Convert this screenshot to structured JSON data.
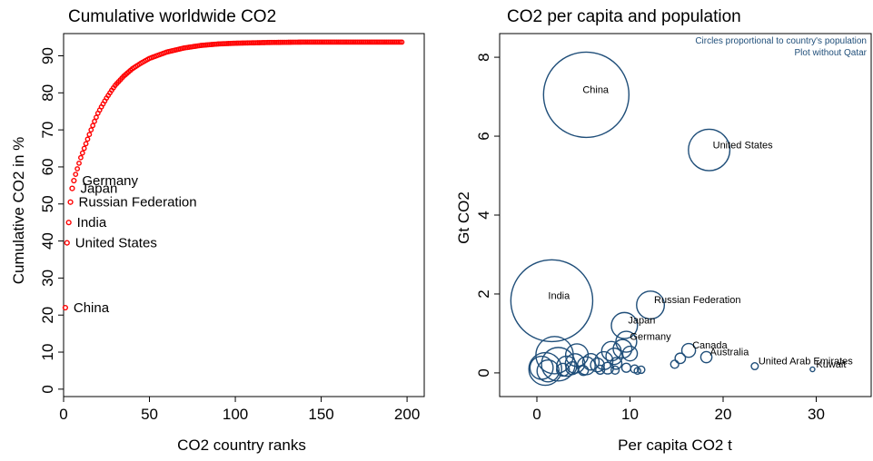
{
  "colors": {
    "left_markers": "#ff0000",
    "bubbles": "#1f4e79",
    "note": "#1f4e79",
    "axis": "#000000"
  },
  "chart_data": [
    {
      "type": "scatter",
      "title": "Cumulative worldwide CO2",
      "xlabel": "CO2 country ranks",
      "ylabel": "Cumulative CO2 in %",
      "xlim": [
        0,
        210
      ],
      "ylim": [
        -2,
        96
      ],
      "xticks": [
        0,
        50,
        100,
        150,
        200
      ],
      "xtick_labels": [
        "0",
        "50",
        "100",
        "150",
        "200"
      ],
      "yticks": [
        0,
        10,
        20,
        30,
        40,
        50,
        60,
        70,
        80,
        90
      ],
      "ytick_labels": [
        "0",
        "10",
        "20",
        "30",
        "40",
        "50",
        "60",
        "70",
        "80",
        "90"
      ],
      "grid": false,
      "marker_color": "#ff0000",
      "curve": {
        "x": [
          1,
          2,
          3,
          4,
          5,
          6,
          7,
          8,
          9,
          10,
          12,
          14,
          16,
          18,
          20,
          22,
          25,
          28,
          30,
          35,
          40,
          45,
          50,
          60,
          70,
          80,
          90,
          100,
          120,
          140,
          160,
          180,
          197
        ],
        "y": [
          22,
          39.5,
          45,
          50.5,
          54.2,
          56.3,
          58,
          59.5,
          61,
          62.5,
          65,
          67.5,
          70,
          72.3,
          74.5,
          76.2,
          78.6,
          80.7,
          82,
          84.5,
          86.5,
          88,
          89.3,
          91,
          92.1,
          92.8,
          93.2,
          93.4,
          93.6,
          93.7,
          93.7,
          93.7,
          93.7
        ]
      },
      "labeled_points": [
        {
          "name": "China",
          "x": 1,
          "y": 22
        },
        {
          "name": "United States",
          "x": 2,
          "y": 39.5
        },
        {
          "name": "India",
          "x": 3,
          "y": 45
        },
        {
          "name": "Russian Federation",
          "x": 4,
          "y": 50.5
        },
        {
          "name": "Japan",
          "x": 5,
          "y": 54.2
        },
        {
          "name": "Germany",
          "x": 6,
          "y": 56.3
        }
      ]
    },
    {
      "type": "scatter",
      "title": "CO2 per capita and population",
      "xlabel": "Per capita CO2 t",
      "ylabel": "Gt CO2",
      "xlim": [
        -4,
        36
      ],
      "ylim": [
        -0.6,
        8.6
      ],
      "xticks": [
        0,
        10,
        20,
        30
      ],
      "xtick_labels": [
        "0",
        "10",
        "20",
        "30"
      ],
      "yticks": [
        0,
        2,
        4,
        6,
        8
      ],
      "ytick_labels": [
        "0",
        "2",
        "4",
        "6",
        "8"
      ],
      "grid": false,
      "note_lines": [
        "Circles proportional to country's population",
        "Plot without Qatar"
      ],
      "bubble_color": "#1f4e79",
      "bubbles": [
        {
          "name": "China",
          "x": 5.3,
          "y": 7.05,
          "size": 1360
        },
        {
          "name": "United States",
          "x": 18.5,
          "y": 5.65,
          "size": 320
        },
        {
          "name": "India",
          "x": 1.6,
          "y": 1.83,
          "size": 1250
        },
        {
          "name": "Russian Federation",
          "x": 12.2,
          "y": 1.72,
          "size": 144
        },
        {
          "name": "Japan",
          "x": 9.4,
          "y": 1.2,
          "size": 127
        },
        {
          "name": "Germany",
          "x": 9.6,
          "y": 0.79,
          "size": 81
        },
        {
          "name": "Canada",
          "x": 16.3,
          "y": 0.57,
          "size": 35
        },
        {
          "name": "Australia",
          "x": 18.2,
          "y": 0.4,
          "size": 23
        },
        {
          "name": "United Arab Emirates",
          "x": 23.4,
          "y": 0.17,
          "size": 9
        },
        {
          "name": "Kuwait",
          "x": 29.6,
          "y": 0.09,
          "size": 4
        },
        {
          "name": "",
          "x": 1.9,
          "y": 0.45,
          "size": 260
        },
        {
          "name": "",
          "x": 0.9,
          "y": 0.1,
          "size": 200
        },
        {
          "name": "",
          "x": 2.3,
          "y": 0.22,
          "size": 210
        },
        {
          "name": "",
          "x": 0.5,
          "y": 0.13,
          "size": 100
        },
        {
          "name": "",
          "x": 1.2,
          "y": 0.05,
          "size": 90
        },
        {
          "name": "",
          "x": 3.2,
          "y": 0.17,
          "size": 75
        },
        {
          "name": "",
          "x": 4.3,
          "y": 0.45,
          "size": 95
        },
        {
          "name": "",
          "x": 4.1,
          "y": 0.24,
          "size": 70
        },
        {
          "name": "",
          "x": 5.3,
          "y": 0.18,
          "size": 60
        },
        {
          "name": "",
          "x": 5.8,
          "y": 0.28,
          "size": 50
        },
        {
          "name": "",
          "x": 7.2,
          "y": 0.31,
          "size": 60
        },
        {
          "name": "",
          "x": 8.0,
          "y": 0.55,
          "size": 70
        },
        {
          "name": "",
          "x": 8.3,
          "y": 0.42,
          "size": 50
        },
        {
          "name": "",
          "x": 9.2,
          "y": 0.61,
          "size": 65
        },
        {
          "name": "",
          "x": 10.0,
          "y": 0.49,
          "size": 40
        },
        {
          "name": "",
          "x": 6.5,
          "y": 0.2,
          "size": 35
        },
        {
          "name": "",
          "x": 7.6,
          "y": 0.12,
          "size": 25
        },
        {
          "name": "",
          "x": 8.5,
          "y": 0.24,
          "size": 25
        },
        {
          "name": "",
          "x": 9.6,
          "y": 0.13,
          "size": 15
        },
        {
          "name": "",
          "x": 10.5,
          "y": 0.1,
          "size": 12
        },
        {
          "name": "",
          "x": 11.2,
          "y": 0.08,
          "size": 10
        },
        {
          "name": "",
          "x": 3.8,
          "y": 0.12,
          "size": 30
        },
        {
          "name": "",
          "x": 2.8,
          "y": 0.08,
          "size": 30
        },
        {
          "name": "",
          "x": 6.8,
          "y": 0.08,
          "size": 15
        },
        {
          "name": "",
          "x": 8.4,
          "y": 0.07,
          "size": 12
        },
        {
          "name": "",
          "x": 14.8,
          "y": 0.22,
          "size": 12
        },
        {
          "name": "",
          "x": 15.4,
          "y": 0.37,
          "size": 20
        },
        {
          "name": "",
          "x": 10.8,
          "y": 0.05,
          "size": 8
        },
        {
          "name": "",
          "x": 5.0,
          "y": 0.06,
          "size": 18
        }
      ]
    }
  ]
}
